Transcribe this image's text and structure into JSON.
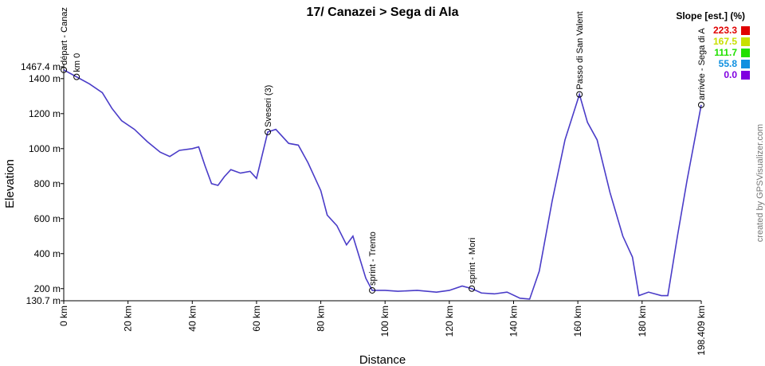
{
  "chart_data": {
    "type": "line",
    "title": "17/ Canazei > Sega di Ala",
    "x_label": "Distance",
    "y_label": "Elevation",
    "credit": "created by GPSVisualizer.com",
    "color": "#4a3cc8",
    "x": [
      0,
      4,
      8,
      12,
      15,
      18,
      22,
      26,
      30,
      33,
      36,
      40,
      42,
      44,
      46,
      48,
      50,
      52,
      55,
      58,
      60,
      63.5,
      66,
      70,
      73,
      76,
      80,
      82,
      85,
      88,
      90,
      92,
      94,
      96,
      100,
      104,
      110,
      116,
      120,
      124,
      127,
      130,
      134,
      138,
      142,
      145,
      148,
      152,
      156,
      160.5,
      163,
      166,
      170,
      174,
      177,
      179,
      182,
      186,
      188,
      191,
      194,
      198.409
    ],
    "values": [
      1450,
      1410,
      1370,
      1320,
      1230,
      1160,
      1110,
      1040,
      980,
      955,
      990,
      1000,
      1010,
      900,
      800,
      790,
      840,
      880,
      860,
      870,
      830,
      1095,
      1110,
      1030,
      1020,
      920,
      760,
      620,
      560,
      450,
      500,
      380,
      260,
      190,
      190,
      185,
      190,
      180,
      190,
      215,
      200,
      175,
      170,
      180,
      145,
      140,
      300,
      700,
      1050,
      1310,
      1150,
      1050,
      750,
      500,
      380,
      160,
      180,
      160,
      160,
      500,
      820,
      1250
    ],
    "markers": {
      "x": [
        0,
        4,
        63.5,
        96,
        127,
        160.5,
        198.409
      ],
      "values": [
        1450,
        1410,
        1095,
        190,
        200,
        1310,
        1250
      ],
      "labels": [
        "départ - Canaz",
        "km 0",
        "Sveseri (3)",
        "sprint - Trento",
        "sprint - Mori",
        "Passo di San Valent",
        "arrivée - Sega di A"
      ]
    },
    "xlim": [
      0,
      198.409
    ],
    "xticks": [
      {
        "value": 0,
        "label": "0 km"
      },
      {
        "value": 20,
        "label": "20 km"
      },
      {
        "value": 40,
        "label": "40 km"
      },
      {
        "value": 60,
        "label": "60 km"
      },
      {
        "value": 80,
        "label": "80 km"
      },
      {
        "value": 100,
        "label": "100 km"
      },
      {
        "value": 120,
        "label": "120 km"
      },
      {
        "value": 140,
        "label": "140 km"
      },
      {
        "value": 160,
        "label": "160 km"
      },
      {
        "value": 180,
        "label": "180 km"
      },
      {
        "value": 198.409,
        "label": "198.409 km"
      }
    ],
    "ylim": [
      130.7,
      1467.4
    ],
    "yticks": [
      {
        "value": 130.7,
        "label": "130.7 m"
      },
      {
        "value": 200,
        "label": "200 m"
      },
      {
        "value": 400,
        "label": "400 m"
      },
      {
        "value": 600,
        "label": "600 m"
      },
      {
        "value": 800,
        "label": "800 m"
      },
      {
        "value": 1000,
        "label": "1000 m"
      },
      {
        "value": 1200,
        "label": "1200 m"
      },
      {
        "value": 1400,
        "label": "1400 m"
      },
      {
        "value": 1467.4,
        "label": "1467.4 m"
      }
    ],
    "legend": {
      "title": "Slope [est.] (%)",
      "items": [
        {
          "value": 223.3,
          "color": "#e00000"
        },
        {
          "value": 167.5,
          "color": "#c8e000"
        },
        {
          "value": 111.7,
          "color": "#20e000"
        },
        {
          "value": 55.8,
          "color": "#1090e0"
        },
        {
          "value": 0,
          "label": "0.0",
          "color": "#8000e0"
        }
      ]
    }
  }
}
